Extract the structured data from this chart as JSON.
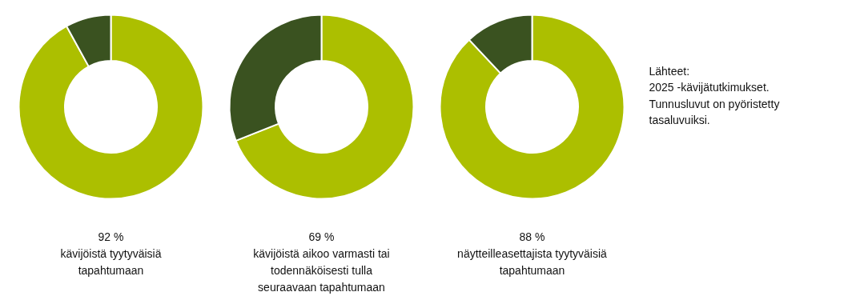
{
  "chart_data": [
    {
      "type": "donut",
      "title": "92 %\nkävijöistä tyytyväisiä\ntapahtumaan",
      "categories": [
        null,
        null
      ],
      "values": [
        92,
        8
      ],
      "colors": [
        "#acbf00",
        "#3a5220"
      ]
    },
    {
      "type": "donut",
      "title": "69 %\nkävijöistä aikoo varmasti tai\ntodennäköisesti tulla\nseuraavaan tapahtumaan",
      "categories": [
        null,
        null
      ],
      "values": [
        69,
        31
      ],
      "colors": [
        "#acbf00",
        "#3a5220"
      ]
    },
    {
      "type": "donut",
      "title": "88 %\nnäytteilleasettajista tyytyväisiä\ntapahtumaan",
      "categories": [
        null,
        null
      ],
      "values": [
        88,
        12
      ],
      "colors": [
        "#acbf00",
        "#3a5220"
      ]
    },
    {
      "type": "other",
      "annotations": [
        "Lähteet:\n2025 -kävijätutkimukset.\nTunnusluvut on pyöristetty\ntasaluvuiksi."
      ]
    }
  ]
}
